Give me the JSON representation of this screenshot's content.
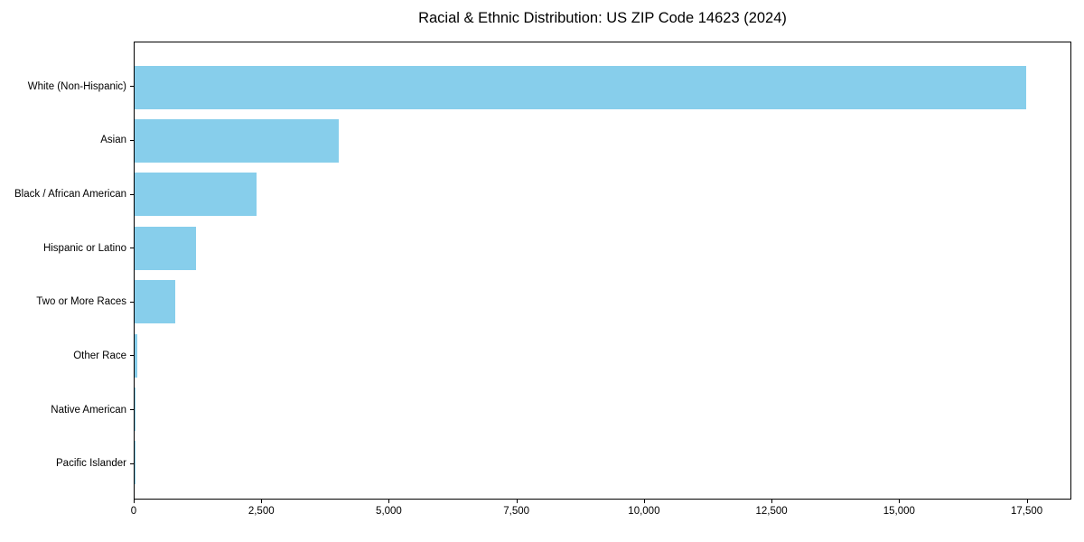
{
  "chart_data": {
    "type": "bar",
    "orientation": "horizontal",
    "title": "Racial & Ethnic Distribution: US ZIP Code 14623 (2024)",
    "xlabel": "",
    "ylabel": "",
    "categories": [
      "White (Non-Hispanic)",
      "Asian",
      "Black / African American",
      "Hispanic or Latino",
      "Two or More Races",
      "Other Race",
      "Native American",
      "Pacific Islander"
    ],
    "values": [
      17500,
      4000,
      2400,
      1200,
      800,
      50,
      20,
      5
    ],
    "xlim": [
      0,
      18375
    ],
    "x_ticks": [
      0,
      2500,
      5000,
      7500,
      10000,
      12500,
      15000,
      17500
    ],
    "x_tick_labels": [
      "0",
      "2,500",
      "5,000",
      "7,500",
      "10,000",
      "12,500",
      "15,000",
      "17,500"
    ],
    "bar_color": "#87CEEB",
    "axis_color": "#000000",
    "background_color": "#ffffff",
    "grid": false,
    "legend": false
  }
}
